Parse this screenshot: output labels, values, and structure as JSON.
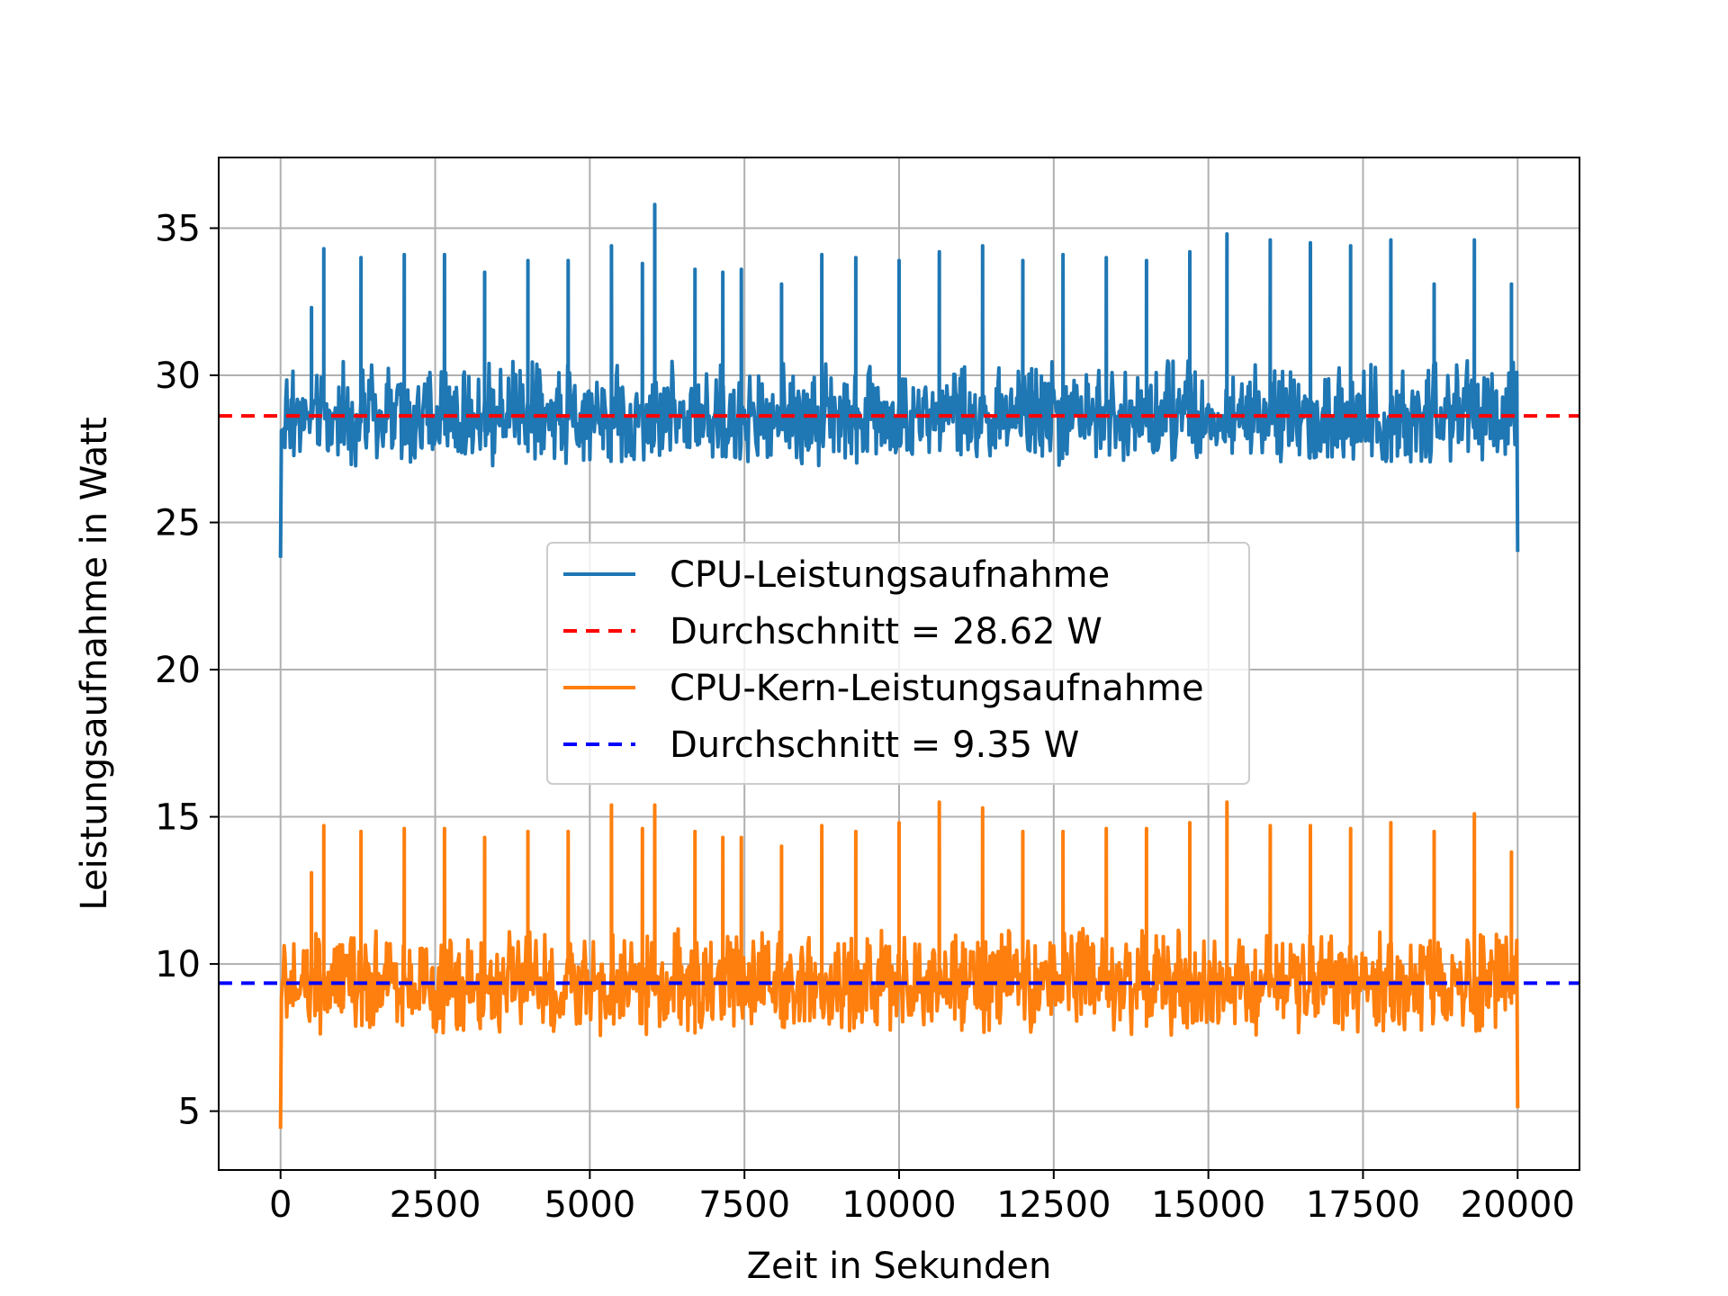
{
  "chart_data": {
    "type": "line",
    "title": "",
    "xlabel": "Zeit in Sekunden",
    "ylabel": "Leistungsaufnahme in Watt",
    "xlim": [
      -1000,
      21000
    ],
    "ylim": [
      3,
      37.4
    ],
    "x_ticks": [
      0,
      2500,
      5000,
      7500,
      10000,
      12500,
      15000,
      17500,
      20000
    ],
    "x_tick_labels": [
      "0",
      "2500",
      "5000",
      "7500",
      "10000",
      "12500",
      "15000",
      "17500",
      "20000"
    ],
    "y_ticks": [
      5,
      10,
      15,
      20,
      25,
      30,
      35
    ],
    "y_tick_labels": [
      "5",
      "10",
      "15",
      "20",
      "25",
      "30",
      "35"
    ],
    "grid": true,
    "legend_position": "center",
    "series": [
      {
        "name": "CPU-Leistungsaufnahme",
        "color": "#1f77b4",
        "style": "solid",
        "x_start": 0,
        "x_end": 20000,
        "base": 28.6,
        "noise_min": 27.0,
        "noise_max": 30.5,
        "start_dip": 23.8,
        "end_dip": 24.0,
        "spikes": [
          [
            500,
            32.3
          ],
          [
            700,
            34.3
          ],
          [
            1300,
            34.0
          ],
          [
            2000,
            34.1
          ],
          [
            2650,
            34.1
          ],
          [
            3300,
            33.5
          ],
          [
            4000,
            33.9
          ],
          [
            4650,
            33.9
          ],
          [
            5350,
            34.4
          ],
          [
            5850,
            33.8
          ],
          [
            6050,
            35.8
          ],
          [
            6700,
            33.6
          ],
          [
            7150,
            33.5
          ],
          [
            7450,
            33.6
          ],
          [
            8100,
            33.1
          ],
          [
            8750,
            34.1
          ],
          [
            9300,
            34.0
          ],
          [
            10000,
            33.9
          ],
          [
            10650,
            34.2
          ],
          [
            11350,
            34.4
          ],
          [
            12000,
            33.9
          ],
          [
            12650,
            34.1
          ],
          [
            13350,
            34.0
          ],
          [
            14000,
            33.9
          ],
          [
            14700,
            34.2
          ],
          [
            15300,
            34.8
          ],
          [
            16000,
            34.6
          ],
          [
            16650,
            34.5
          ],
          [
            17300,
            34.4
          ],
          [
            17950,
            34.6
          ],
          [
            18650,
            33.1
          ],
          [
            19300,
            34.6
          ],
          [
            19900,
            33.1
          ]
        ]
      },
      {
        "name": "Durchschnitt = 28.62 W",
        "color": "#ff0000",
        "style": "dashed",
        "value": 28.62
      },
      {
        "name": "CPU-Kern-Leistungsaufnahme",
        "color": "#ff7f0e",
        "style": "solid",
        "x_start": 0,
        "x_end": 20000,
        "base": 9.3,
        "noise_min": 7.6,
        "noise_max": 11.2,
        "start_dip": 4.4,
        "end_dip": 5.1,
        "spikes": [
          [
            500,
            13.1
          ],
          [
            700,
            14.7
          ],
          [
            1300,
            14.5
          ],
          [
            2000,
            14.6
          ],
          [
            2650,
            14.6
          ],
          [
            3300,
            14.3
          ],
          [
            4000,
            14.5
          ],
          [
            4650,
            14.5
          ],
          [
            5350,
            15.4
          ],
          [
            5850,
            14.6
          ],
          [
            6050,
            15.4
          ],
          [
            6700,
            14.5
          ],
          [
            7150,
            14.3
          ],
          [
            7450,
            14.3
          ],
          [
            8100,
            14.0
          ],
          [
            8750,
            14.7
          ],
          [
            9300,
            14.5
          ],
          [
            10000,
            14.8
          ],
          [
            10650,
            15.5
          ],
          [
            11350,
            15.3
          ],
          [
            12000,
            14.5
          ],
          [
            12650,
            14.5
          ],
          [
            13350,
            14.6
          ],
          [
            14000,
            14.6
          ],
          [
            14700,
            14.8
          ],
          [
            15300,
            15.5
          ],
          [
            16000,
            14.7
          ],
          [
            16650,
            14.7
          ],
          [
            17300,
            14.6
          ],
          [
            17950,
            14.8
          ],
          [
            18650,
            14.5
          ],
          [
            19300,
            15.1
          ],
          [
            19900,
            13.8
          ]
        ]
      },
      {
        "name": "Durchschnitt = 9.35 W",
        "color": "#0000ff",
        "style": "dashed",
        "value": 9.35
      }
    ]
  }
}
